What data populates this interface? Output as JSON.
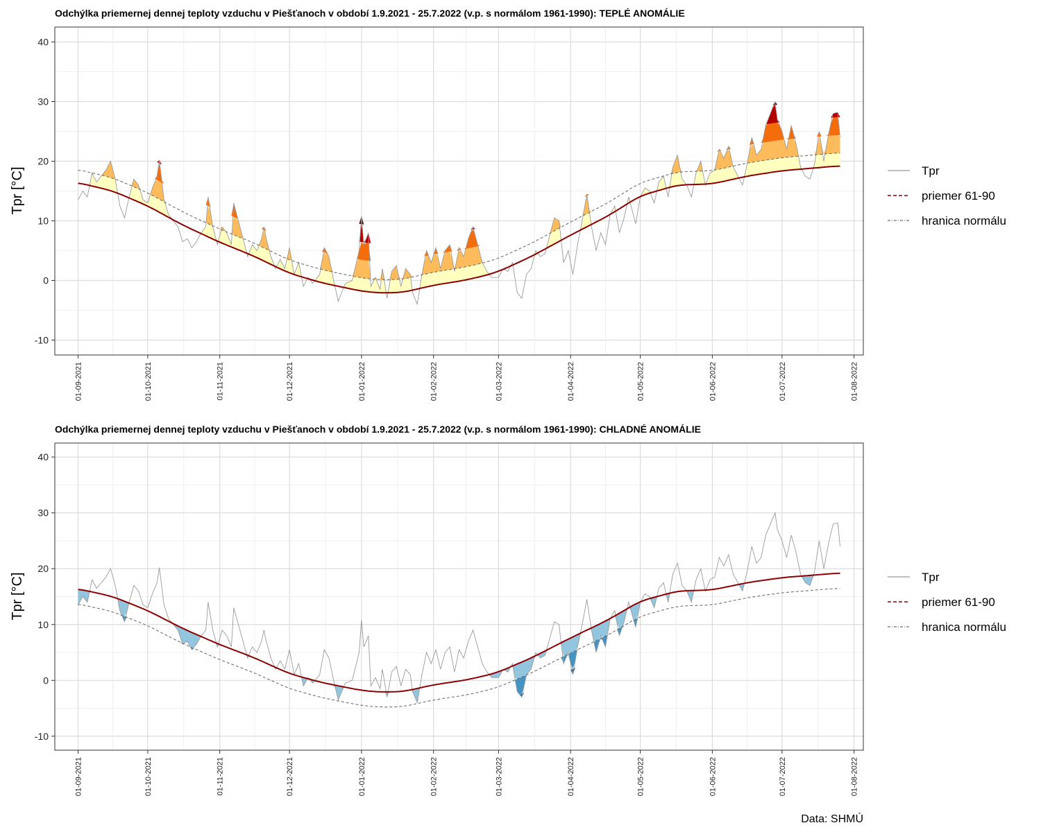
{
  "source_caption": "Data: SHMÚ",
  "colors": {
    "grid_major": "#dcdcdc",
    "grid_minor": "#ececec",
    "tpr_line": "#9a9a9a",
    "normal_line": "#8b0000",
    "boundary_line": "#6e6e6e",
    "warm_fill": [
      "#ffffc0",
      "#fdbb5c",
      "#f46d0c",
      "#b30000",
      "#3a0000"
    ],
    "cold_fill": [
      "#92c5de",
      "#4393c3",
      "#2166ac"
    ]
  },
  "chart_data": [
    {
      "type": "area",
      "panel": "warm",
      "title": "Odchýlka priemernej dennej teploty vzduchu v Piešťanoch v období 1.9.2021 - 25.7.2022 (v.p. s normálom 1961-1990): TEPLÉ ANOMÁLIE",
      "ylabel": "Tpr [°C]",
      "ylim": [
        -12.5,
        42.5
      ],
      "yticks": [
        -10,
        0,
        10,
        20,
        30,
        40
      ],
      "xlim_days": [
        -10,
        338
      ],
      "xticks": [
        {
          "day": 0,
          "label": "01-09-2021"
        },
        {
          "day": 30,
          "label": "01-10-2021"
        },
        {
          "day": 61,
          "label": "01-11-2021"
        },
        {
          "day": 91,
          "label": "01-12-2021"
        },
        {
          "day": 122,
          "label": "01-01-2022"
        },
        {
          "day": 153,
          "label": "01-02-2022"
        },
        {
          "day": 181,
          "label": "01-03-2022"
        },
        {
          "day": 212,
          "label": "01-04-2022"
        },
        {
          "day": 242,
          "label": "01-05-2022"
        },
        {
          "day": 273,
          "label": "01-06-2022"
        },
        {
          "day": 303,
          "label": "01-07-2022"
        },
        {
          "day": 334,
          "label": "01-08-2022"
        }
      ],
      "boundary_offset": 2.2,
      "legend": [
        "Tpr",
        "priemer 61-90",
        "hranica normálu"
      ],
      "legend_position": "right"
    },
    {
      "type": "area",
      "panel": "cold",
      "title": "Odchýlka priemernej dennej teploty vzduchu v Piešťanoch v období 1.9.2021 - 25.7.2022 (v.p. s normálom 1961-1990): CHLADNÉ ANOMÁLIE",
      "ylabel": "Tpr [°C]",
      "ylim": [
        -12.5,
        42.5
      ],
      "yticks": [
        -10,
        0,
        10,
        20,
        30,
        40
      ],
      "xlim_days": [
        -10,
        338
      ],
      "xticks": [
        {
          "day": 0,
          "label": "01-09-2021"
        },
        {
          "day": 30,
          "label": "01-10-2021"
        },
        {
          "day": 61,
          "label": "01-11-2021"
        },
        {
          "day": 91,
          "label": "01-12-2021"
        },
        {
          "day": 122,
          "label": "01-01-2022"
        },
        {
          "day": 153,
          "label": "01-02-2022"
        },
        {
          "day": 181,
          "label": "01-03-2022"
        },
        {
          "day": 212,
          "label": "01-04-2022"
        },
        {
          "day": 242,
          "label": "01-05-2022"
        },
        {
          "day": 273,
          "label": "01-06-2022"
        },
        {
          "day": 303,
          "label": "01-07-2022"
        },
        {
          "day": 334,
          "label": "01-08-2022"
        }
      ],
      "boundary_offset": -2.7,
      "legend": [
        "Tpr",
        "priemer 61-90",
        "hranica normálu"
      ],
      "legend_position": "right"
    }
  ],
  "series": {
    "normal_keypoints": [
      [
        0,
        16.4
      ],
      [
        15,
        15.0
      ],
      [
        30,
        12.5
      ],
      [
        45,
        9.3
      ],
      [
        61,
        6.4
      ],
      [
        75,
        4.2
      ],
      [
        91,
        1.2
      ],
      [
        105,
        -0.4
      ],
      [
        122,
        -1.8
      ],
      [
        130,
        -2.1
      ],
      [
        140,
        -2.0
      ],
      [
        153,
        -0.8
      ],
      [
        166,
        0.0
      ],
      [
        175,
        0.8
      ],
      [
        181,
        1.5
      ],
      [
        195,
        4.0
      ],
      [
        212,
        7.6
      ],
      [
        228,
        10.8
      ],
      [
        242,
        14.2
      ],
      [
        258,
        16.0
      ],
      [
        273,
        16.2
      ],
      [
        288,
        17.5
      ],
      [
        303,
        18.4
      ],
      [
        318,
        18.9
      ],
      [
        327,
        19.2
      ]
    ],
    "tpr_keypoints": [
      [
        0,
        13.5
      ],
      [
        2,
        15
      ],
      [
        4,
        14
      ],
      [
        6,
        18
      ],
      [
        8,
        16.5
      ],
      [
        10,
        17.5
      ],
      [
        12,
        18.5
      ],
      [
        14,
        20
      ],
      [
        16,
        17
      ],
      [
        18,
        12.5
      ],
      [
        20,
        10.5
      ],
      [
        22,
        14
      ],
      [
        24,
        17
      ],
      [
        26,
        16
      ],
      [
        28,
        13.5
      ],
      [
        30,
        13
      ],
      [
        32,
        15.5
      ],
      [
        34,
        17.5
      ],
      [
        35,
        20.2
      ],
      [
        37,
        13.5
      ],
      [
        39,
        11
      ],
      [
        41,
        10
      ],
      [
        43,
        9
      ],
      [
        45,
        6.5
      ],
      [
        47,
        7
      ],
      [
        49,
        5.5
      ],
      [
        51,
        6.5
      ],
      [
        53,
        8
      ],
      [
        55,
        9
      ],
      [
        56,
        14
      ],
      [
        58,
        9
      ],
      [
        60,
        6
      ],
      [
        62,
        9
      ],
      [
        64,
        8
      ],
      [
        66,
        6
      ],
      [
        67,
        13
      ],
      [
        69,
        10
      ],
      [
        71,
        7
      ],
      [
        73,
        4
      ],
      [
        75,
        6
      ],
      [
        77,
        5
      ],
      [
        79,
        7
      ],
      [
        80,
        9
      ],
      [
        81,
        7
      ],
      [
        83,
        4
      ],
      [
        85,
        2
      ],
      [
        87,
        3.5
      ],
      [
        89,
        2
      ],
      [
        91,
        5.5
      ],
      [
        93,
        1
      ],
      [
        95,
        3
      ],
      [
        97,
        -1
      ],
      [
        99,
        0.5
      ],
      [
        101,
        -0.5
      ],
      [
        104,
        1
      ],
      [
        106,
        5.5
      ],
      [
        108,
        4
      ],
      [
        110,
        0
      ],
      [
        112,
        -3.5
      ],
      [
        115,
        -0.5
      ],
      [
        118,
        0
      ],
      [
        121,
        5
      ],
      [
        122,
        10.8
      ],
      [
        123,
        6
      ],
      [
        125,
        8
      ],
      [
        126,
        -1
      ],
      [
        128,
        0.5
      ],
      [
        130,
        -1.5
      ],
      [
        131,
        2
      ],
      [
        133,
        -3
      ],
      [
        135,
        1.5
      ],
      [
        137,
        2.5
      ],
      [
        139,
        -1
      ],
      [
        141,
        2
      ],
      [
        143,
        1
      ],
      [
        144,
        -2
      ],
      [
        146,
        -4
      ],
      [
        148,
        1
      ],
      [
        150,
        5
      ],
      [
        152,
        3
      ],
      [
        154,
        5.5
      ],
      [
        156,
        2
      ],
      [
        158,
        5
      ],
      [
        160,
        6
      ],
      [
        162,
        1.5
      ],
      [
        164,
        5.5
      ],
      [
        166,
        4
      ],
      [
        168,
        7
      ],
      [
        170,
        9
      ],
      [
        172,
        6
      ],
      [
        174,
        3
      ],
      [
        176,
        1.5
      ],
      [
        178,
        0.5
      ],
      [
        181,
        0.5
      ],
      [
        183,
        2
      ],
      [
        185,
        1.5
      ],
      [
        187,
        3
      ],
      [
        189,
        -2
      ],
      [
        191,
        -3
      ],
      [
        193,
        1
      ],
      [
        195,
        2
      ],
      [
        197,
        5
      ],
      [
        199,
        4
      ],
      [
        201,
        4.5
      ],
      [
        203,
        7.5
      ],
      [
        205,
        10.5
      ],
      [
        207,
        10
      ],
      [
        209,
        3
      ],
      [
        211,
        5
      ],
      [
        213,
        1
      ],
      [
        215,
        6
      ],
      [
        217,
        10
      ],
      [
        219,
        14.5
      ],
      [
        221,
        9
      ],
      [
        223,
        5
      ],
      [
        225,
        8
      ],
      [
        227,
        6
      ],
      [
        229,
        11
      ],
      [
        231,
        12.5
      ],
      [
        233,
        8
      ],
      [
        235,
        10.5
      ],
      [
        237,
        14
      ],
      [
        240,
        9.5
      ],
      [
        242,
        14
      ],
      [
        244,
        15.5
      ],
      [
        246,
        15
      ],
      [
        248,
        13
      ],
      [
        250,
        16.5
      ],
      [
        252,
        17.5
      ],
      [
        254,
        14
      ],
      [
        256,
        19
      ],
      [
        258,
        21
      ],
      [
        260,
        17
      ],
      [
        262,
        16
      ],
      [
        264,
        14
      ],
      [
        266,
        18
      ],
      [
        268,
        20
      ],
      [
        270,
        16
      ],
      [
        272,
        18
      ],
      [
        274,
        18.5
      ],
      [
        276,
        22
      ],
      [
        278,
        20.5
      ],
      [
        280,
        22.5
      ],
      [
        282,
        19
      ],
      [
        284,
        17.5
      ],
      [
        286,
        16
      ],
      [
        288,
        19.5
      ],
      [
        290,
        24
      ],
      [
        292,
        21
      ],
      [
        294,
        22
      ],
      [
        296,
        26
      ],
      [
        298,
        28
      ],
      [
        300,
        30
      ],
      [
        301,
        27
      ],
      [
        303,
        25
      ],
      [
        305,
        22
      ],
      [
        307,
        26
      ],
      [
        309,
        23
      ],
      [
        311,
        19
      ],
      [
        313,
        17.5
      ],
      [
        315,
        17
      ],
      [
        317,
        19.5
      ],
      [
        319,
        25
      ],
      [
        321,
        20
      ],
      [
        323,
        24.5
      ],
      [
        325,
        28
      ],
      [
        327,
        28.2
      ],
      [
        328,
        24
      ],
      [
        329,
        25.5
      ]
    ]
  }
}
